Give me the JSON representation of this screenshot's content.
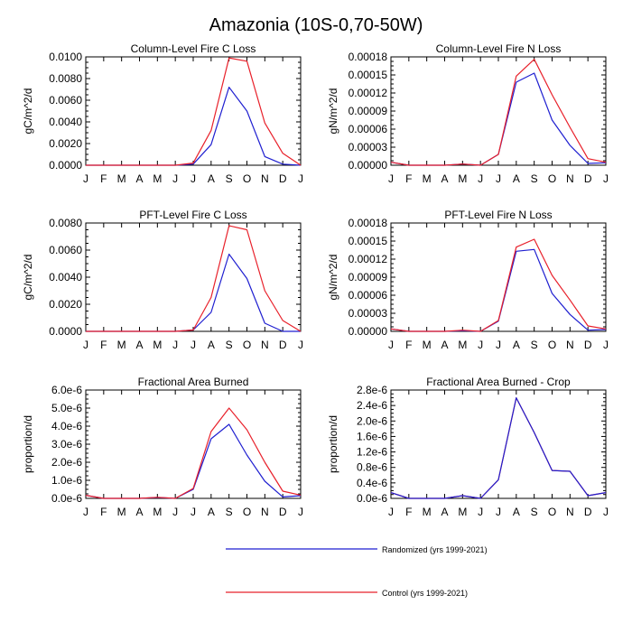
{
  "figure_title": "Amazonia (10S-0,70-50W)",
  "colors": {
    "randomized": "#1f1fd0",
    "control": "#e8202a",
    "axis": "#000000"
  },
  "legend": [
    {
      "key": "randomized",
      "label": "Randomized (yrs 1999-2021)"
    },
    {
      "key": "control",
      "label": "Control (yrs 1999-2021)"
    }
  ],
  "chart_data": [
    {
      "type": "line",
      "title": "Column-Level Fire C Loss",
      "ylabel": "gC/m^2/d",
      "xlabel": "",
      "categories": [
        "J",
        "F",
        "M",
        "A",
        "M",
        "J",
        "J",
        "A",
        "S",
        "O",
        "N",
        "D",
        "J"
      ],
      "ylim": [
        0,
        0.01
      ],
      "yticks": [
        0,
        0.002,
        0.004,
        0.006,
        0.008,
        0.01
      ],
      "ytick_labels": [
        "0.0000",
        "0.0020",
        "0.0040",
        "0.0060",
        "0.0080",
        "0.0100"
      ],
      "series": [
        {
          "name": "Randomized",
          "color_key": "randomized",
          "values": [
            0,
            0,
            0,
            0,
            0,
            0,
            0.0001,
            0.0019,
            0.0072,
            0.005,
            0.0008,
            0.0001,
            0
          ]
        },
        {
          "name": "Control",
          "color_key": "control",
          "values": [
            0,
            0,
            0,
            0,
            0,
            0,
            0.0002,
            0.0032,
            0.0099,
            0.0096,
            0.0039,
            0.0011,
            0
          ]
        }
      ]
    },
    {
      "type": "line",
      "title": "Column-Level Fire N Loss",
      "ylabel": "gN/m^2/d",
      "xlabel": "",
      "categories": [
        "J",
        "F",
        "M",
        "A",
        "M",
        "J",
        "J",
        "A",
        "S",
        "O",
        "N",
        "D",
        "J"
      ],
      "ylim": [
        0,
        0.00018
      ],
      "yticks": [
        0,
        3e-05,
        6e-05,
        9e-05,
        0.00012,
        0.00015,
        0.00018
      ],
      "ytick_labels": [
        "0.00000",
        "0.00003",
        "0.00006",
        "0.00009",
        "0.00012",
        "0.00015",
        "0.00018"
      ],
      "series": [
        {
          "name": "Randomized",
          "color_key": "randomized",
          "values": [
            5e-06,
            0,
            0,
            0,
            2e-06,
            0,
            1.8e-05,
            0.000138,
            0.000153,
            7.5e-05,
            3.3e-05,
            3e-06,
            4e-06
          ]
        },
        {
          "name": "Control",
          "color_key": "control",
          "values": [
            5e-06,
            0,
            0,
            0,
            2e-06,
            0,
            1.8e-05,
            0.000148,
            0.000176,
            0.000117,
            6.3e-05,
            1.1e-05,
            5e-06
          ]
        }
      ]
    },
    {
      "type": "line",
      "title": "PFT-Level Fire C Loss",
      "ylabel": "gC/m^2/d",
      "xlabel": "",
      "categories": [
        "J",
        "F",
        "M",
        "A",
        "M",
        "J",
        "J",
        "A",
        "S",
        "O",
        "N",
        "D",
        "J"
      ],
      "ylim": [
        0,
        0.008
      ],
      "yticks": [
        0,
        0.002,
        0.004,
        0.006,
        0.008
      ],
      "ytick_labels": [
        "0.0000",
        "0.0020",
        "0.0040",
        "0.0060",
        "0.0080"
      ],
      "series": [
        {
          "name": "Randomized",
          "color_key": "randomized",
          "values": [
            0,
            0,
            0,
            0,
            0,
            0,
            0.0001,
            0.0014,
            0.0057,
            0.0039,
            0.0006,
            0,
            0
          ]
        },
        {
          "name": "Control",
          "color_key": "control",
          "values": [
            0,
            0,
            0,
            0,
            0,
            0,
            0.0001,
            0.0025,
            0.0078,
            0.0075,
            0.003,
            0.0008,
            0
          ]
        }
      ]
    },
    {
      "type": "line",
      "title": "PFT-Level Fire N Loss",
      "ylabel": "gN/m^2/d",
      "xlabel": "",
      "categories": [
        "J",
        "F",
        "M",
        "A",
        "M",
        "J",
        "J",
        "A",
        "S",
        "O",
        "N",
        "D",
        "J"
      ],
      "ylim": [
        0,
        0.00018
      ],
      "yticks": [
        0,
        3e-05,
        6e-05,
        9e-05,
        0.00012,
        0.00015,
        0.00018
      ],
      "ytick_labels": [
        "0.00000",
        "0.00003",
        "0.00006",
        "0.00009",
        "0.00012",
        "0.00015",
        "0.00018"
      ],
      "series": [
        {
          "name": "Randomized",
          "color_key": "randomized",
          "values": [
            4e-06,
            0,
            0,
            0,
            1e-06,
            0,
            1.7e-05,
            0.000133,
            0.000136,
            6.3e-05,
            2.8e-05,
            2e-06,
            3e-06
          ]
        },
        {
          "name": "Control",
          "color_key": "control",
          "values": [
            4e-06,
            0,
            0,
            0,
            2e-06,
            0,
            1.8e-05,
            0.00014,
            0.000153,
            9.3e-05,
            5.2e-05,
            9e-06,
            4e-06
          ]
        }
      ]
    },
    {
      "type": "line",
      "title": "Fractional Area Burned",
      "ylabel": "proportion/d",
      "xlabel": "",
      "categories": [
        "J",
        "F",
        "M",
        "A",
        "M",
        "J",
        "J",
        "A",
        "S",
        "O",
        "N",
        "D",
        "J"
      ],
      "ylim": [
        0,
        6e-06
      ],
      "yticks": [
        0,
        1e-06,
        2e-06,
        3e-06,
        4e-06,
        5e-06,
        6e-06
      ],
      "ytick_labels": [
        "0.0e-6",
        "1.0e-6",
        "2.0e-6",
        "3.0e-6",
        "4.0e-6",
        "5.0e-6",
        "6.0e-6"
      ],
      "series": [
        {
          "name": "Randomized",
          "color_key": "randomized",
          "values": [
            1.7e-07,
            0,
            0,
            0,
            5e-08,
            0,
            5e-07,
            3.3e-06,
            4.1e-06,
            2.4e-06,
            9.5e-07,
            8e-08,
            1.5e-07
          ]
        },
        {
          "name": "Control",
          "color_key": "control",
          "values": [
            1.7e-07,
            0,
            0,
            0,
            6e-08,
            0,
            5.5e-07,
            3.7e-06,
            5e-06,
            3.8e-06,
            2e-06,
            4e-07,
            1.8e-07
          ]
        }
      ]
    },
    {
      "type": "line",
      "title": "Fractional Area Burned - Crop",
      "ylabel": "proportion/d",
      "xlabel": "",
      "categories": [
        "J",
        "F",
        "M",
        "A",
        "M",
        "J",
        "J",
        "A",
        "S",
        "O",
        "N",
        "D",
        "J"
      ],
      "ylim": [
        0,
        2.8e-06
      ],
      "yticks": [
        0,
        4e-07,
        8e-07,
        1.2e-06,
        1.6e-06,
        2e-06,
        2.4e-06,
        2.8e-06
      ],
      "ytick_labels": [
        "0.0e-6",
        "0.4e-6",
        "0.8e-6",
        "1.2e-6",
        "1.6e-6",
        "2.0e-6",
        "2.4e-6",
        "2.8e-6"
      ],
      "series": [
        {
          "name": "Control",
          "color_key": "control",
          "values": [
            1.5e-07,
            0,
            0,
            0,
            7e-08,
            0,
            4.8e-07,
            2.6e-06,
            1.7e-06,
            7.2e-07,
            7e-07,
            7e-08,
            1.5e-07
          ]
        },
        {
          "name": "Randomized",
          "color_key": "randomized",
          "values": [
            1.5e-07,
            0,
            0,
            0,
            7e-08,
            0,
            4.8e-07,
            2.6e-06,
            1.7e-06,
            7.2e-07,
            7e-07,
            7e-08,
            1.5e-07
          ]
        }
      ]
    }
  ]
}
